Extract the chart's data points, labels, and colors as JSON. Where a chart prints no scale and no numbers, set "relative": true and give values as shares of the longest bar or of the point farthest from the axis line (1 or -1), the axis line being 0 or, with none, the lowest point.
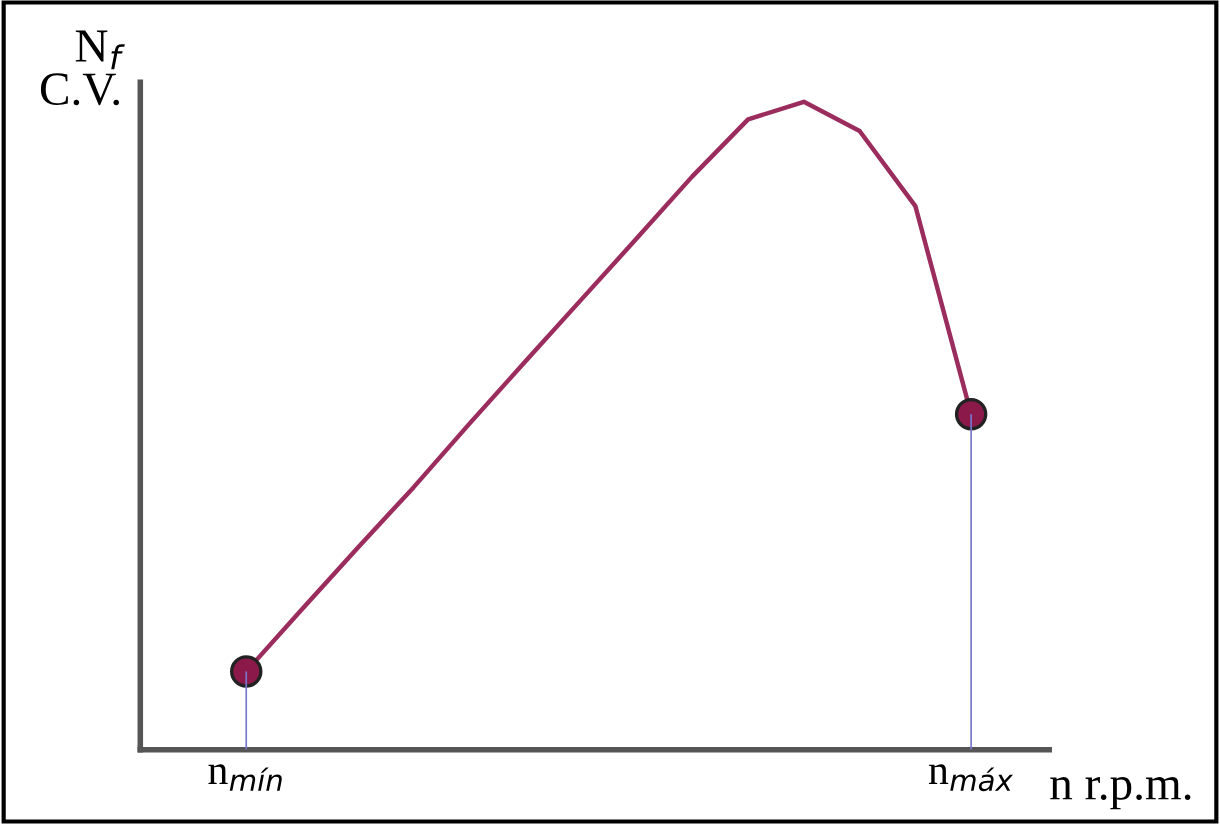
{
  "chart_data": {
    "type": "line",
    "relative": true,
    "categories": [
      "n$_{mín}$",
      null,
      null,
      null,
      null,
      null,
      null,
      null,
      null,
      null,
      null,
      null,
      null,
      "n$_{máx}$"
    ],
    "ylabel": "N$_{f}$\nC.V.",
    "xlabel": "n r.p.m.",
    "series": [
      {
        "color": "#9b2d5e",
        "values": [
          0.121,
          0.217,
          0.312,
          0.405,
          0.503,
          0.599,
          0.694,
          0.789,
          0.885,
          0.973,
          1,
          0.955,
          0.839,
          0.518
        ]
      },
      {
        "type": "bar",
        "color": "#7777cc",
        "values": [
          0.121,
          null,
          null,
          null,
          null,
          null,
          null,
          null,
          null,
          null,
          null,
          null,
          null,
          0.518
        ]
      },
      {
        "type": "scatter",
        "color": "#8b1a4a",
        "marker": "circle",
        "values": [
          0.121,
          null,
          null,
          null,
          null,
          null,
          null,
          null,
          null,
          null,
          null,
          null,
          null,
          0.518
        ]
      }
    ]
  }
}
